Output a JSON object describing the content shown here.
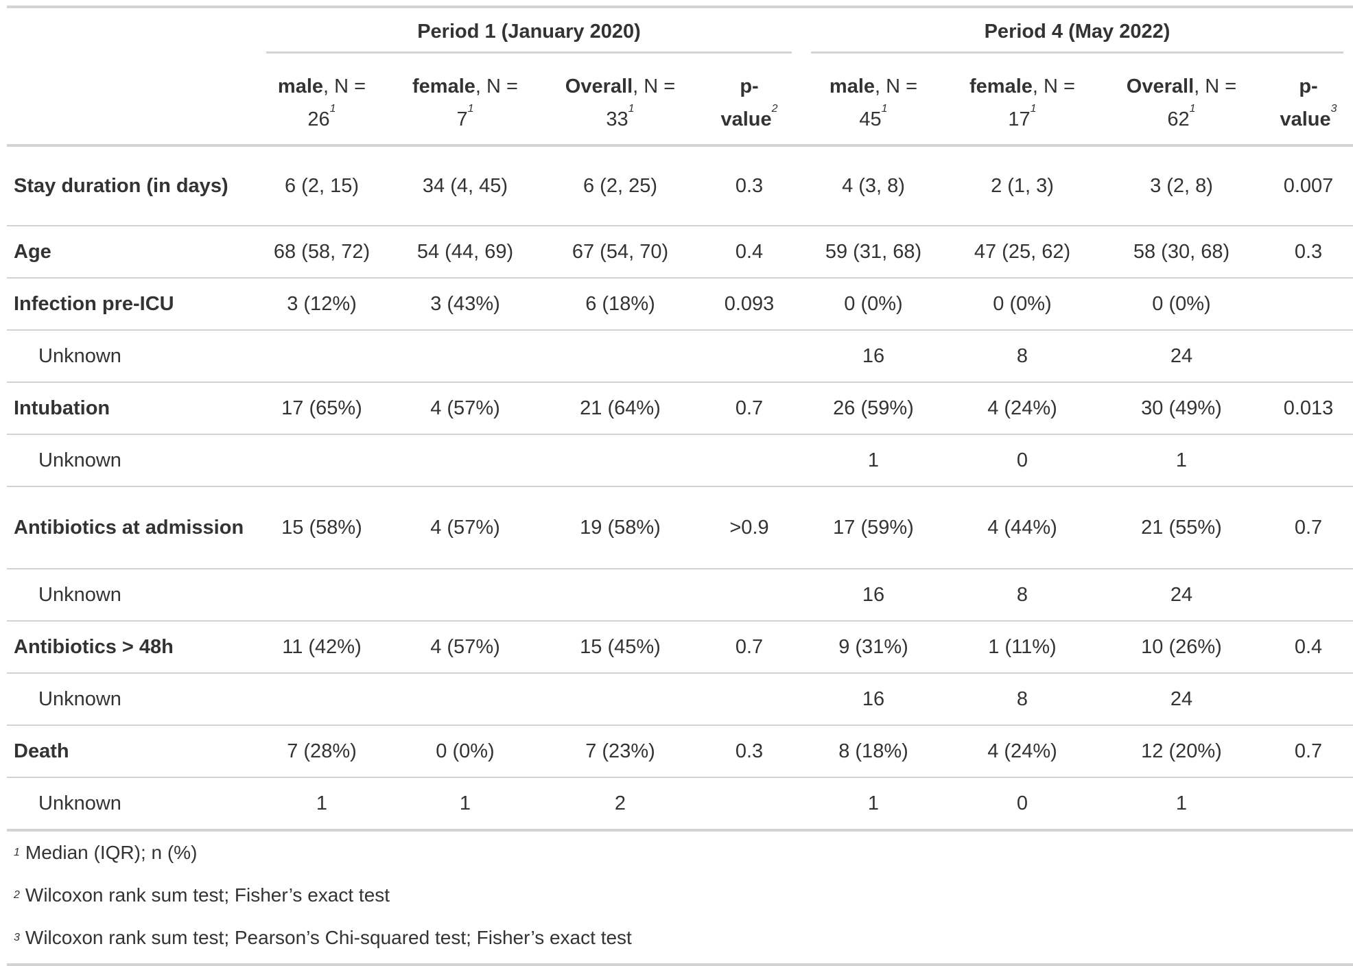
{
  "spanners": {
    "period1": "Period 1 (January 2020)",
    "period4": "Period 4 (May 2022)"
  },
  "columns": {
    "p1_male_bold": "male",
    "p1_male_rest": ", N =",
    "p1_male_n": "26",
    "p1_male_sup": "1",
    "p1_female_bold": "female",
    "p1_female_rest": ", N =",
    "p1_female_n": "7",
    "p1_female_sup": "1",
    "p1_overall_bold": "Overall",
    "p1_overall_rest": ", N =",
    "p1_overall_n": "33",
    "p1_overall_sup": "1",
    "p1_p_line1": "p-",
    "p1_p_line2": "value",
    "p1_p_sup": "2",
    "p4_male_bold": "male",
    "p4_male_rest": ", N =",
    "p4_male_n": "45",
    "p4_male_sup": "1",
    "p4_female_bold": "female",
    "p4_female_rest": ", N =",
    "p4_female_n": "17",
    "p4_female_sup": "1",
    "p4_overall_bold": "Overall",
    "p4_overall_rest": ", N =",
    "p4_overall_n": "62",
    "p4_overall_sup": "1",
    "p4_p_line1": "p-",
    "p4_p_line2": "value",
    "p4_p_sup": "3"
  },
  "rows": [
    {
      "label": "Stay duration (in days)",
      "cells": [
        "6 (2, 15)",
        "34 (4, 45)",
        "6 (2, 25)",
        "0.3",
        "4 (3, 8)",
        "2 (1, 3)",
        "3 (2, 8)",
        "0.007"
      ]
    },
    {
      "label": "Age",
      "cells": [
        "68 (58, 72)",
        "54 (44, 69)",
        "67 (54, 70)",
        "0.4",
        "59 (31, 68)",
        "47 (25, 62)",
        "58 (30, 68)",
        "0.3"
      ]
    },
    {
      "label": "Infection pre-ICU",
      "cells": [
        "3 (12%)",
        "3 (43%)",
        "6 (18%)",
        "0.093",
        "0 (0%)",
        "0 (0%)",
        "0 (0%)",
        ""
      ]
    },
    {
      "label": "Unknown",
      "cells": [
        "",
        "",
        "",
        "",
        "16",
        "8",
        "24",
        ""
      ]
    },
    {
      "label": "Intubation",
      "cells": [
        "17 (65%)",
        "4 (57%)",
        "21 (64%)",
        "0.7",
        "26 (59%)",
        "4 (24%)",
        "30 (49%)",
        "0.013"
      ]
    },
    {
      "label": "Unknown",
      "cells": [
        "",
        "",
        "",
        "",
        "1",
        "0",
        "1",
        ""
      ]
    },
    {
      "label": "Antibiotics at admission",
      "cells": [
        "15 (58%)",
        "4 (57%)",
        "19 (58%)",
        ">0.9",
        "17 (59%)",
        "4 (44%)",
        "21 (55%)",
        "0.7"
      ]
    },
    {
      "label": "Unknown",
      "cells": [
        "",
        "",
        "",
        "",
        "16",
        "8",
        "24",
        ""
      ]
    },
    {
      "label": "Antibiotics > 48h",
      "cells": [
        "11 (42%)",
        "4 (57%)",
        "15 (45%)",
        "0.7",
        "9 (31%)",
        "1 (11%)",
        "10 (26%)",
        "0.4"
      ]
    },
    {
      "label": "Unknown",
      "cells": [
        "",
        "",
        "",
        "",
        "16",
        "8",
        "24",
        ""
      ]
    },
    {
      "label": "Death",
      "cells": [
        "7 (28%)",
        "0 (0%)",
        "7 (23%)",
        "0.3",
        "8 (18%)",
        "4 (24%)",
        "12 (20%)",
        "0.7"
      ]
    },
    {
      "label": "Unknown",
      "cells": [
        "1",
        "1",
        "2",
        "",
        "1",
        "0",
        "1",
        ""
      ]
    }
  ],
  "footnotes": [
    {
      "mark": "1",
      "text": "Median (IQR); n (%)"
    },
    {
      "mark": "2",
      "text": "Wilcoxon rank sum test; Fisher’s exact test"
    },
    {
      "mark": "3",
      "text": "Wilcoxon rank sum test; Pearson’s Chi-squared test; Fisher’s exact test"
    }
  ]
}
